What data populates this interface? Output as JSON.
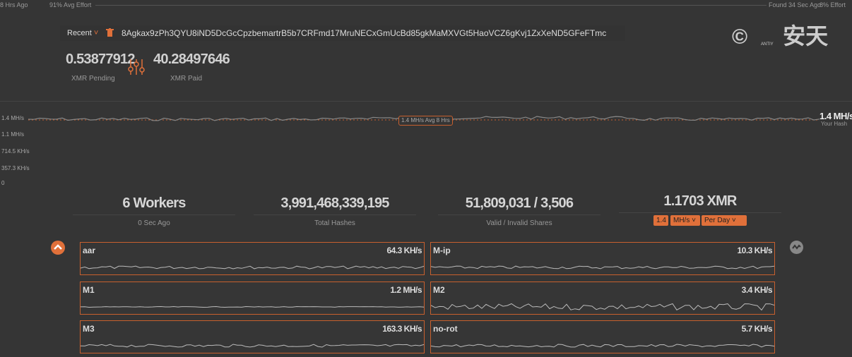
{
  "top_bar": {
    "left_time": "8 Hrs Ago",
    "left_effort": "91% Avg Effort",
    "right_time": "Found 34 Sec Ago",
    "right_effort": "8% Effort"
  },
  "address_bar": {
    "recent": "Recent",
    "address": "8Agkax9zPh3QYU8iND5DcGcCpzbemartrB5b7CRFmd17MruNECxGmUcBd85gkMaMXVGt5HaoVCZ6gKvj1ZxXeND5GFeFTmc"
  },
  "balances": [
    {
      "value": "0.53877912",
      "label": "XMR Pending"
    },
    {
      "value": "40.28497646",
      "label": "XMR Paid"
    }
  ],
  "hash_chart": {
    "y_labels": [
      "1.4 MH/s",
      "1.1 MH/s",
      "714.5 KH/s",
      "357.3 KH/s",
      "0"
    ],
    "avg_label": "1.4 MH/s Avg 8 Hrs",
    "current": "1.4 MH/s",
    "current_label": "Your Hash"
  },
  "stats": [
    {
      "value": "6 Workers",
      "label": "0 Sec Ago"
    },
    {
      "value": "3,991,468,339,195",
      "label": "Total Hashes"
    },
    {
      "value": "51,809,031 / 3,506",
      "label": "Valid / Invalid Shares"
    },
    {
      "value": "1.1703 XMR"
    }
  ],
  "calculator": {
    "input": "1.4",
    "unit": "MH/s",
    "period": "Per Day"
  },
  "workers": [
    {
      "name": "aar",
      "rate": "64.3 KH/s"
    },
    {
      "name": "M-ip",
      "rate": "10.3 KH/s"
    },
    {
      "name": "M1",
      "rate": "1.2 MH/s"
    },
    {
      "name": "M2",
      "rate": "3.4 KH/s"
    },
    {
      "name": "M3",
      "rate": "163.3 KH/s"
    },
    {
      "name": "no-rot",
      "rate": "5.7 KH/s"
    }
  ],
  "watermark": {
    "text": "安天",
    "sub": "ANTIY"
  }
}
